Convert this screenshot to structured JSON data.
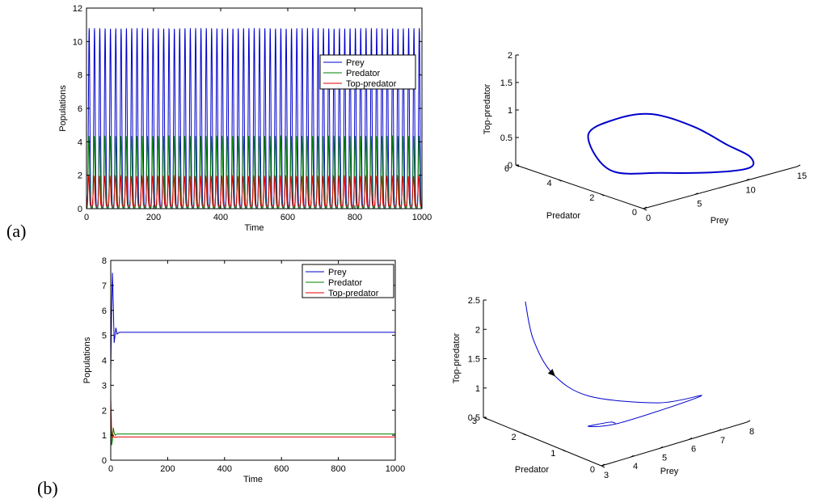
{
  "figure": {
    "panel_labels": [
      "(a)",
      "(b)"
    ]
  },
  "chart_data": [
    {
      "id": "a-time",
      "type": "line",
      "xlabel": "Time",
      "ylabel": "Populations",
      "xlim": [
        0,
        1000
      ],
      "ylim": [
        0,
        12
      ],
      "xticks": [
        0,
        200,
        400,
        600,
        800,
        1000
      ],
      "yticks": [
        0,
        2,
        4,
        6,
        8,
        10,
        12
      ],
      "grid": false,
      "legend_position": "top-right",
      "oscillation": {
        "cycles": 63,
        "t_start": 0,
        "t_end": 1000
      },
      "series": [
        {
          "name": "Prey",
          "color": "#0000cc",
          "min": 0.05,
          "max": 10.8
        },
        {
          "name": "Predator",
          "color": "#008000",
          "min": 0.05,
          "max": 4.35
        },
        {
          "name": "Top-predator",
          "color": "#e00000",
          "min": 0.15,
          "max": 1.95
        }
      ]
    },
    {
      "id": "a-phase",
      "type": "line3d",
      "xlabel": "Prey",
      "ylabel": "Predator",
      "zlabel": "Top-predator",
      "xlim": [
        0,
        15
      ],
      "ylim": [
        0,
        6
      ],
      "zlim": [
        0,
        2
      ],
      "xticks": [
        0,
        5,
        10,
        15
      ],
      "yticks": [
        0,
        2,
        4,
        6
      ],
      "zticks": [
        0,
        0.5,
        1,
        1.5,
        2
      ],
      "grid": false,
      "series": [
        {
          "name": "trajectory",
          "color": "#0000cc",
          "closed": true,
          "points": [
            [
              3.0,
              3.0,
              0.15
            ],
            [
              6.0,
              2.0,
              0.08
            ],
            [
              9.5,
              1.0,
              0.05
            ],
            [
              11.5,
              0.5,
              0.1
            ],
            [
              11.0,
              0.3,
              0.35
            ],
            [
              9.0,
              0.4,
              0.65
            ],
            [
              7.0,
              1.0,
              1.0
            ],
            [
              5.0,
              2.0,
              1.2
            ],
            [
              3.5,
              3.0,
              1.05
            ],
            [
              2.5,
              3.8,
              0.7
            ]
          ]
        }
      ]
    },
    {
      "id": "b-time",
      "type": "line",
      "xlabel": "Time",
      "ylabel": "Populations",
      "xlim": [
        0,
        1000
      ],
      "ylim": [
        0,
        8
      ],
      "xticks": [
        0,
        200,
        400,
        600,
        800,
        1000
      ],
      "yticks": [
        0,
        1,
        2,
        3,
        4,
        5,
        6,
        7,
        8
      ],
      "grid": false,
      "legend_position": "top-right",
      "series": [
        {
          "name": "Prey",
          "color": "#0000cc",
          "points": [
            [
              0,
              3.5
            ],
            [
              3,
              6.0
            ],
            [
              6,
              7.5
            ],
            [
              9,
              6.2
            ],
            [
              12,
              4.7
            ],
            [
              15,
              5.0
            ],
            [
              18,
              5.3
            ],
            [
              22,
              5.05
            ],
            [
              30,
              5.12
            ],
            [
              1000,
              5.12
            ]
          ]
        },
        {
          "name": "Predator",
          "color": "#008000",
          "points": [
            [
              0,
              2.0
            ],
            [
              3,
              0.6
            ],
            [
              6,
              0.8
            ],
            [
              9,
              1.3
            ],
            [
              12,
              1.1
            ],
            [
              16,
              1.0
            ],
            [
              22,
              1.05
            ],
            [
              30,
              1.05
            ],
            [
              1000,
              1.05
            ]
          ]
        },
        {
          "name": "Top-predator",
          "color": "#e00000",
          "points": [
            [
              0,
              2.5
            ],
            [
              3,
              1.2
            ],
            [
              6,
              0.9
            ],
            [
              9,
              0.95
            ],
            [
              14,
              0.92
            ],
            [
              25,
              0.93
            ],
            [
              1000,
              0.93
            ]
          ]
        }
      ]
    },
    {
      "id": "b-phase",
      "type": "line3d",
      "xlabel": "Prey",
      "ylabel": "Predator",
      "zlabel": "Top-predator",
      "xlim": [
        3,
        8
      ],
      "ylim": [
        0,
        3
      ],
      "zlim": [
        0.5,
        2.5
      ],
      "xticks": [
        3,
        4,
        5,
        6,
        7,
        8
      ],
      "yticks": [
        0,
        1,
        2,
        3
      ],
      "zticks": [
        0.5,
        1,
        1.5,
        2,
        2.5
      ],
      "grid": false,
      "series": [
        {
          "name": "trajectory",
          "color": "#0000cc",
          "closed": false,
          "arrow_at_index": 2,
          "points": [
            [
              3.9,
              2.6,
              2.45
            ],
            [
              3.5,
              2.1,
              2.0
            ],
            [
              3.5,
              1.6,
              1.55
            ],
            [
              4.2,
              1.2,
              1.18
            ],
            [
              6.2,
              0.9,
              0.85
            ],
            [
              7.5,
              0.8,
              0.8
            ],
            [
              5.0,
              1.0,
              0.66
            ],
            [
              4.3,
              1.3,
              0.62
            ],
            [
              4.9,
              1.2,
              0.63
            ],
            [
              5.0,
              1.12,
              0.62
            ]
          ]
        }
      ]
    }
  ]
}
